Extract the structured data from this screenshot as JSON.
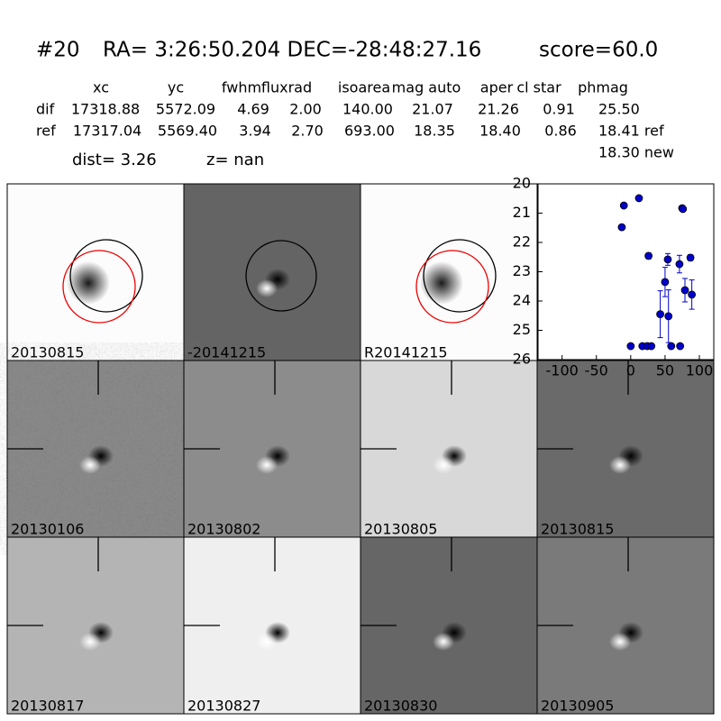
{
  "header": {
    "id": "#20",
    "coords": "RA= 3:26:50.204 DEC=-28:48:27.16",
    "score": "score=60.0"
  },
  "table": {
    "columns": [
      "xc",
      "yc",
      "fwhm",
      "fluxrad",
      "isoarea",
      "mag auto",
      "aper",
      "cl star",
      "phmag"
    ],
    "rows": [
      [
        "dif",
        "17318.88",
        "5572.09",
        "4.69",
        "2.00",
        "140.00",
        "21.07",
        "21.26",
        "0.91",
        "25.50"
      ],
      [
        "ref",
        "17317.04",
        "5569.40",
        "3.94",
        "2.70",
        "693.00",
        "18.35",
        "18.40",
        "0.86",
        "18.41 ref"
      ]
    ],
    "extra": "18.30 new"
  },
  "dist": "dist=  3.26",
  "z": "z=   nan",
  "stamps": [
    {
      "label": "20130815",
      "color": "#000000"
    },
    {
      "label": "-20141215",
      "color": "#000000"
    },
    {
      "label": "R20141215",
      "color": "#000000"
    },
    {
      "label": "20130106",
      "color": "#000000"
    },
    {
      "label": "20130802",
      "color": "#000000"
    },
    {
      "label": "20130805",
      "color": "#000000"
    },
    {
      "label": "20130815",
      "color": "#ff0000"
    },
    {
      "label": "20130817",
      "color": "#000000"
    },
    {
      "label": "20130827",
      "color": "#000000"
    },
    {
      "label": "20130830",
      "color": "#000000"
    },
    {
      "label": "20130905",
      "color": "#000000"
    }
  ],
  "chart_data": {
    "type": "scatter",
    "color": "#0000cc",
    "x": [
      -13,
      -10,
      12,
      26,
      0,
      17,
      24,
      30,
      43,
      50,
      54,
      55,
      59,
      71,
      72,
      75,
      76,
      79,
      87,
      89
    ],
    "values": [
      21.48,
      20.74,
      20.49,
      22.46,
      25.54,
      25.54,
      25.54,
      25.54,
      24.45,
      23.35,
      22.58,
      24.52,
      25.54,
      22.74,
      25.54,
      20.83,
      20.86,
      23.63,
      22.52,
      23.78
    ],
    "errors": [
      0,
      0,
      0,
      0.1,
      0,
      0,
      0,
      0,
      0.8,
      0.5,
      0.2,
      0.9,
      0,
      0.3,
      0,
      0,
      0,
      0.4,
      0.1,
      0.5
    ],
    "xlim": [
      -135,
      121
    ],
    "xticks": [
      -100,
      -50,
      0,
      50,
      100
    ],
    "ylim": [
      20,
      26
    ],
    "yticks": [
      20,
      21,
      22,
      23,
      24,
      25,
      26
    ],
    "y_inverted": true
  }
}
